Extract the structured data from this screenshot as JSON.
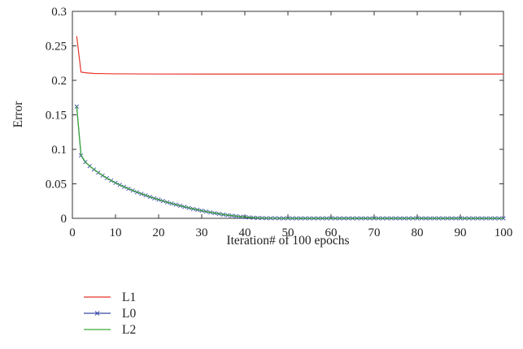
{
  "chart_data": {
    "type": "line",
    "title": "",
    "xlabel": "Iteration# of 100 epochs",
    "ylabel": "Error",
    "xlim": [
      0,
      100
    ],
    "ylim": [
      0,
      0.3
    ],
    "x_ticks": [
      0,
      10,
      20,
      30,
      40,
      50,
      60,
      70,
      80,
      90,
      100
    ],
    "x_tick_labels": [
      "0",
      "10",
      "20",
      "30",
      "40",
      "50",
      "60",
      "70",
      "80",
      "90",
      "100"
    ],
    "y_ticks": [
      0,
      0.05,
      0.1,
      0.15,
      0.2,
      0.25,
      0.3
    ],
    "y_tick_labels": [
      "0",
      "0.05",
      "0.1",
      "0.15",
      "0.2",
      "0.25",
      "0.3"
    ],
    "grid": false,
    "legend_position": "below-left",
    "series": [
      {
        "name": "L1",
        "color": "#e8352b",
        "marker": "none",
        "x": [
          1,
          2,
          3,
          5,
          10,
          20,
          40,
          60,
          80,
          100
        ],
        "y": [
          0.264,
          0.212,
          0.211,
          0.21,
          0.2095,
          0.2092,
          0.2091,
          0.2091,
          0.2091,
          0.2091
        ]
      },
      {
        "name": "L0",
        "color": "#3a4aa6",
        "marker": "x",
        "x": [
          1,
          2,
          3,
          4,
          5,
          6,
          7,
          8,
          9,
          10,
          11,
          12,
          13,
          14,
          15,
          16,
          17,
          18,
          19,
          20,
          21,
          22,
          23,
          24,
          25,
          26,
          27,
          28,
          29,
          30,
          31,
          32,
          33,
          34,
          35,
          36,
          37,
          38,
          39,
          40,
          41,
          42,
          43,
          44,
          45,
          46,
          47,
          48,
          49,
          50,
          51,
          52,
          53,
          54,
          55,
          56,
          57,
          58,
          59,
          60,
          61,
          62,
          63,
          64,
          65,
          66,
          67,
          68,
          69,
          70,
          71,
          72,
          73,
          74,
          75,
          76,
          77,
          78,
          79,
          80,
          81,
          82,
          83,
          84,
          85,
          86,
          87,
          88,
          89,
          90,
          91,
          92,
          93,
          94,
          95,
          96,
          97,
          98,
          99,
          100
        ],
        "y": [
          0.162,
          0.091,
          0.0815,
          0.0758,
          0.0708,
          0.0662,
          0.062,
          0.0582,
          0.0547,
          0.0515,
          0.0485,
          0.0456,
          0.0429,
          0.0403,
          0.0378,
          0.0355,
          0.0332,
          0.031,
          0.029,
          0.027,
          0.0251,
          0.0232,
          0.0215,
          0.0198,
          0.0182,
          0.0166,
          0.0151,
          0.0137,
          0.0123,
          0.011,
          0.0098,
          0.0086,
          0.0075,
          0.0065,
          0.0055,
          0.0046,
          0.0038,
          0.0031,
          0.0024,
          0.0018,
          0.0013,
          0.0009,
          0.0006,
          0.0004,
          0.0002,
          0.0001,
          0.0001,
          0.0,
          0.0,
          0.0,
          0.0,
          0.0,
          0.0,
          0.0,
          0.0,
          0.0,
          0.0,
          0.0,
          0.0,
          0.0,
          0.0,
          0.0,
          0.0,
          0.0,
          0.0,
          0.0,
          0.0,
          0.0,
          0.0,
          0.0,
          0.0,
          0.0,
          0.0,
          0.0,
          0.0,
          0.0,
          0.0,
          0.0,
          0.0,
          0.0,
          0.0,
          0.0,
          0.0,
          0.0,
          0.0,
          0.0,
          0.0,
          0.0,
          0.0,
          0.0,
          0.0,
          0.0,
          0.0,
          0.0,
          0.0,
          0.0,
          0.0,
          0.0,
          0.0,
          0.0
        ]
      },
      {
        "name": "L2",
        "color": "#3aaa35",
        "marker": "none",
        "x": [
          1,
          2,
          3,
          4,
          5,
          6,
          7,
          8,
          9,
          10,
          12,
          14,
          16,
          18,
          20,
          22,
          24,
          26,
          28,
          30,
          32,
          34,
          36,
          38,
          40,
          42,
          44,
          46,
          48,
          50,
          55,
          60,
          70,
          80,
          90,
          100
        ],
        "y": [
          0.163,
          0.092,
          0.0818,
          0.076,
          0.071,
          0.0664,
          0.0622,
          0.0583,
          0.0548,
          0.0516,
          0.0457,
          0.0404,
          0.0356,
          0.0311,
          0.0271,
          0.0233,
          0.0199,
          0.0167,
          0.0138,
          0.0111,
          0.0087,
          0.0066,
          0.0047,
          0.0032,
          0.0019,
          0.001,
          0.0004,
          0.0002,
          0.0001,
          0.0,
          0.0,
          0.0,
          0.0,
          0.0,
          0.0,
          0.0
        ]
      }
    ]
  }
}
